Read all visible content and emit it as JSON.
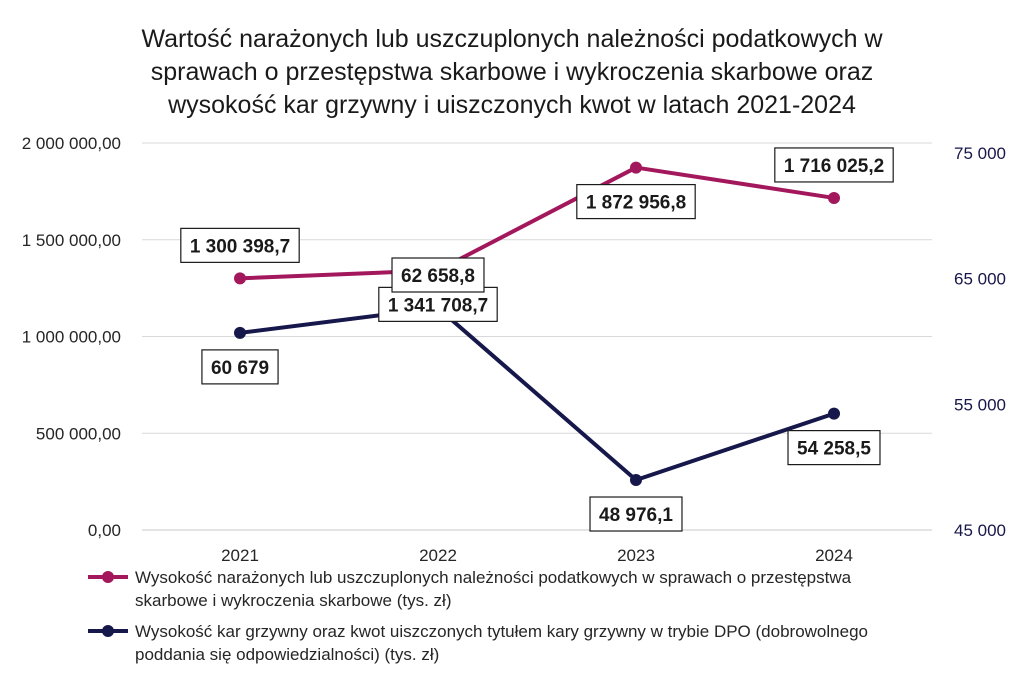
{
  "chart_data": {
    "type": "line",
    "title": "Wartość narażonych lub uszczuplonych należności podatkowych w sprawach o przestępstwa skarbowe i wykroczenia skarbowe oraz wysokość kar grzywny i uiszczonych kwot w latach 2021-2024",
    "title_lines": [
      "Wartość narażonych lub uszczuplonych należności podatkowych w",
      "sprawach o przestępstwa skarbowe i wykroczenia skarbowe oraz",
      "wysokość kar grzywny i uiszczonych kwot w latach 2021-2024"
    ],
    "categories": [
      "2021",
      "2022",
      "2023",
      "2024"
    ],
    "left_axis": {
      "ylim": [
        0,
        2000000
      ],
      "ticks": [
        0,
        500000,
        1000000,
        1500000,
        2000000
      ],
      "tick_labels": [
        "0,00",
        "500 000,00",
        "1 000 000,00",
        "1 500 000,00",
        "2 000 000,00"
      ]
    },
    "right_axis": {
      "ylim": [
        45000,
        80000
      ],
      "ticks": [
        45000,
        55000,
        65000,
        75000
      ],
      "tick_labels": [
        "45 000",
        "55 000",
        "65 000",
        "75 000"
      ],
      "color": "#16174a"
    },
    "grid": true,
    "legend_position": "bottom",
    "series": [
      {
        "name": "Wysokość narażonych lub uszczuplonych należności podatkowych w sprawach o przestępstwa skarbowe i wykroczenia skarbowe (tys. zł)",
        "legend_lines": [
          "Wysokość narażonych lub uszczuplonych należności podatkowych w sprawach o przestępstwa",
          "skarbowe i wykroczenia skarbowe (tys. zł)"
        ],
        "axis": "left",
        "color": "#a3185c",
        "values": [
          1300398.7,
          1341708.7,
          1872956.8,
          1716025.2
        ],
        "data_labels": [
          "1 300 398,7",
          "1 341 708,7",
          "1 872 956,8",
          "1 716 025,2"
        ],
        "label_positions": [
          "above",
          "below",
          "below",
          "above"
        ]
      },
      {
        "name": "Wysokość kar grzywny oraz kwot uiszczonych tytułem kary grzywny w trybie DPO (dobrowolnego poddania się odpowiedzialności) (tys. zł)",
        "legend_lines": [
          "Wysokość kar grzywny oraz kwot uiszczonych tytułem kary grzywny w trybie DPO (dobrowolnego",
          "poddania się odpowiedzialności) (tys. zł)"
        ],
        "axis": "right",
        "color": "#16174a",
        "values": [
          60679,
          62658.8,
          48976.1,
          54258.5
        ],
        "data_labels": [
          "60 679",
          "62 658,8",
          "48 976,1",
          "54 258,5"
        ],
        "label_positions": [
          "below",
          "above",
          "below",
          "below"
        ]
      }
    ]
  }
}
